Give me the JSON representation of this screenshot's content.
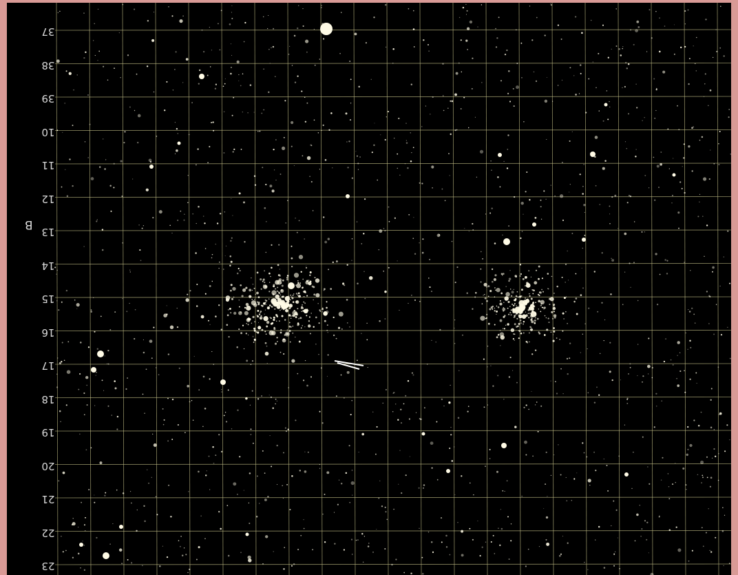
{
  "plate": {
    "row_labels": [
      "37",
      "38",
      "39",
      "10",
      "11",
      "12",
      "13",
      "14",
      "15",
      "16",
      "17",
      "18",
      "19",
      "20",
      "21",
      "22",
      "23"
    ],
    "side_letter": "B",
    "background_color": "#000000",
    "frame_color": "#d99a96",
    "grid_color": "#c8c48a",
    "star_color": "#fffbe6"
  }
}
